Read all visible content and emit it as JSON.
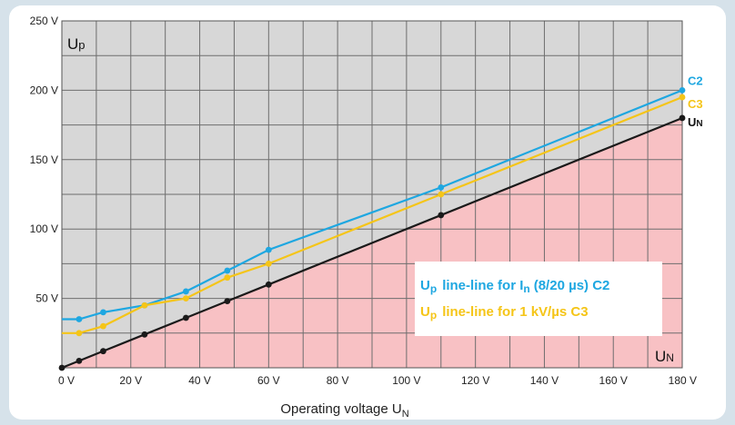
{
  "chart_data": {
    "type": "line",
    "xlabel": "Operating voltage U",
    "xlabel_sub": "N",
    "x_ticks": [
      "0 V",
      "20 V",
      "40 V",
      "60 V",
      "80 V",
      "100 V",
      "120 V",
      "140 V",
      "160 V",
      "180 V"
    ],
    "y_ticks": [
      "50 V",
      "100 V",
      "150 V",
      "200 V",
      "250 V"
    ],
    "xlim": [
      0,
      180
    ],
    "ylim": [
      0,
      250
    ],
    "grid": true,
    "corner_y_label": {
      "main": "U",
      "sub": "p"
    },
    "corner_x_label": {
      "main": "U",
      "sub": "N"
    },
    "series": [
      {
        "name": "C2",
        "end_label": "C2",
        "color": "#1ea7e1",
        "points": [
          [
            0,
            35
          ],
          [
            5,
            35
          ],
          [
            12,
            40
          ],
          [
            24,
            45
          ],
          [
            36,
            55
          ],
          [
            48,
            70
          ],
          [
            60,
            85
          ],
          [
            110,
            130
          ],
          [
            180,
            200
          ]
        ]
      },
      {
        "name": "C3",
        "end_label": "C3",
        "color": "#f5c518",
        "points": [
          [
            0,
            25
          ],
          [
            5,
            25
          ],
          [
            12,
            30
          ],
          [
            24,
            45
          ],
          [
            36,
            50
          ],
          [
            48,
            65
          ],
          [
            60,
            75
          ],
          [
            110,
            125
          ],
          [
            180,
            195
          ]
        ]
      },
      {
        "name": "U_N",
        "end_label": {
          "main": "U",
          "sub": "N"
        },
        "color": "#1a1a1a",
        "points": [
          [
            0,
            0
          ],
          [
            5,
            5
          ],
          [
            12,
            12
          ],
          [
            24,
            24
          ],
          [
            36,
            36
          ],
          [
            48,
            48
          ],
          [
            60,
            60
          ],
          [
            110,
            110
          ],
          [
            180,
            180
          ]
        ]
      }
    ],
    "legend": {
      "placement": "bottom-right",
      "entries": [
        {
          "main": "U",
          "sub": "p",
          "text": "line-line for I",
          "text_sub": "n",
          "tail": "(8/20 µs) C2",
          "color": "#1ea7e1"
        },
        {
          "main": "U",
          "sub": "p",
          "text": "line-line for 1 kV/µs C3",
          "color": "#f5c518"
        }
      ]
    },
    "colors": {
      "plot_background": "#d7d7d7",
      "below_un_fill": "#f8c1c4",
      "page_background": "#d6e2ea"
    }
  }
}
